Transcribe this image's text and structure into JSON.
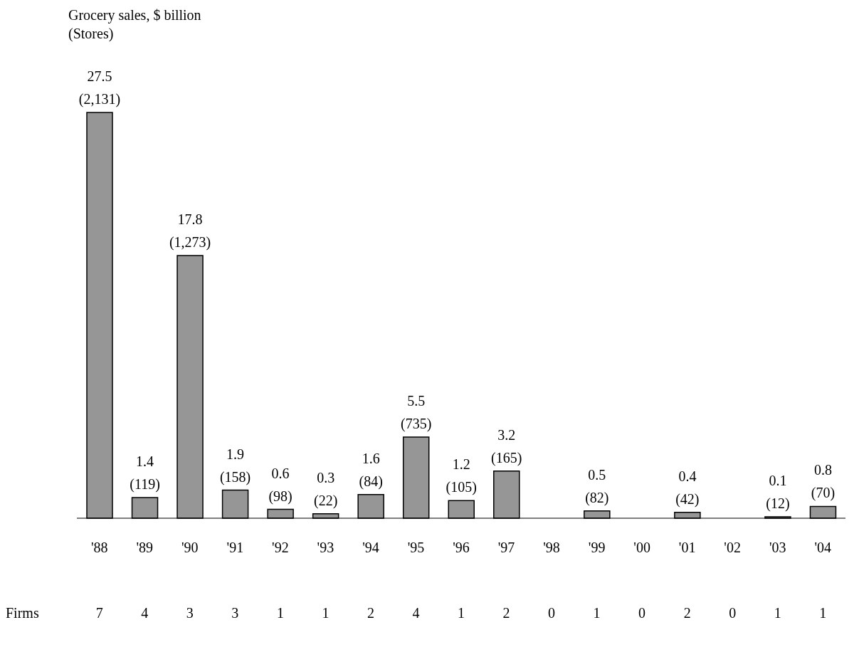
{
  "chart_data": {
    "type": "bar",
    "title": "Grocery sales, $ billion",
    "subtitle": "(Stores)",
    "categories": [
      "'88",
      "'89",
      "'90",
      "'91",
      "'92",
      "'93",
      "'94",
      "'95",
      "'96",
      "'97",
      "'98",
      "'99",
      "'00",
      "'01",
      "'02",
      "'03",
      "'04"
    ],
    "values": [
      27.5,
      1.4,
      17.8,
      1.9,
      0.6,
      0.3,
      1.6,
      5.5,
      1.2,
      3.2,
      null,
      0.5,
      null,
      0.4,
      null,
      0.1,
      0.8
    ],
    "value_labels": [
      "27.5\n(2,131)",
      "1.4\n(119)",
      "17.8\n(1,273)",
      "1.9\n(158)",
      "0.6\n(98)",
      "0.3\n(22)",
      "1.6\n(84)",
      "5.5\n(735)",
      "1.2\n(105)",
      "3.2\n(165)",
      null,
      "0.5\n(82)",
      null,
      "0.4\n(42)",
      null,
      "0.1\n(12)",
      "0.8\n(70)"
    ],
    "color": "#969696",
    "annotations": [
      "Firms",
      "7",
      "4",
      "3",
      "3",
      "1",
      "1",
      "2",
      "4",
      "1",
      "2",
      "0",
      "1",
      "0",
      "2",
      "0",
      "1",
      "1"
    ]
  }
}
